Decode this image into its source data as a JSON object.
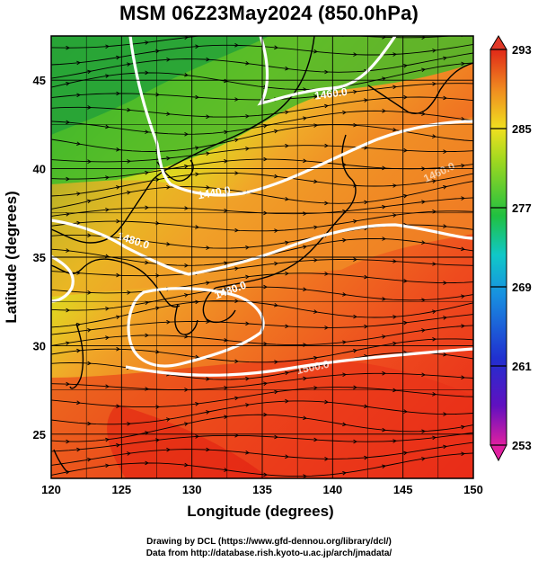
{
  "title": "MSM 06Z23May2024 (850.0hPa)",
  "x_axis": {
    "label": "Longitude (degrees)",
    "ticks": [
      "120",
      "125",
      "130",
      "135",
      "140",
      "145",
      "150"
    ],
    "range": [
      120,
      150
    ]
  },
  "y_axis": {
    "label": "Latitude  (degrees)",
    "ticks": [
      "25",
      "30",
      "35",
      "40",
      "45"
    ],
    "range": [
      22.5,
      47.5
    ]
  },
  "colorbar": {
    "ticks": [
      "293",
      "285",
      "277",
      "269",
      "261",
      "253"
    ],
    "range": [
      253,
      293
    ],
    "colors": [
      "#e0409a",
      "#2020c0",
      "#1870e0",
      "#10c0d0",
      "#20c040",
      "#90d020",
      "#e0e020",
      "#f0a020",
      "#e84020",
      "#d81818"
    ]
  },
  "contours": {
    "color": "#ffffff",
    "labels": [
      "1440.0",
      "1460.0",
      "1480.0",
      "1480.0",
      "1460.0",
      "1500.0"
    ]
  },
  "credits": {
    "line1": "Drawing by DCL (https://www.gfd-dennou.org/library/dcl/)",
    "line2": "Data from http://database.rish.kyoto-u.ac.jp/arch/jmadata/"
  }
}
